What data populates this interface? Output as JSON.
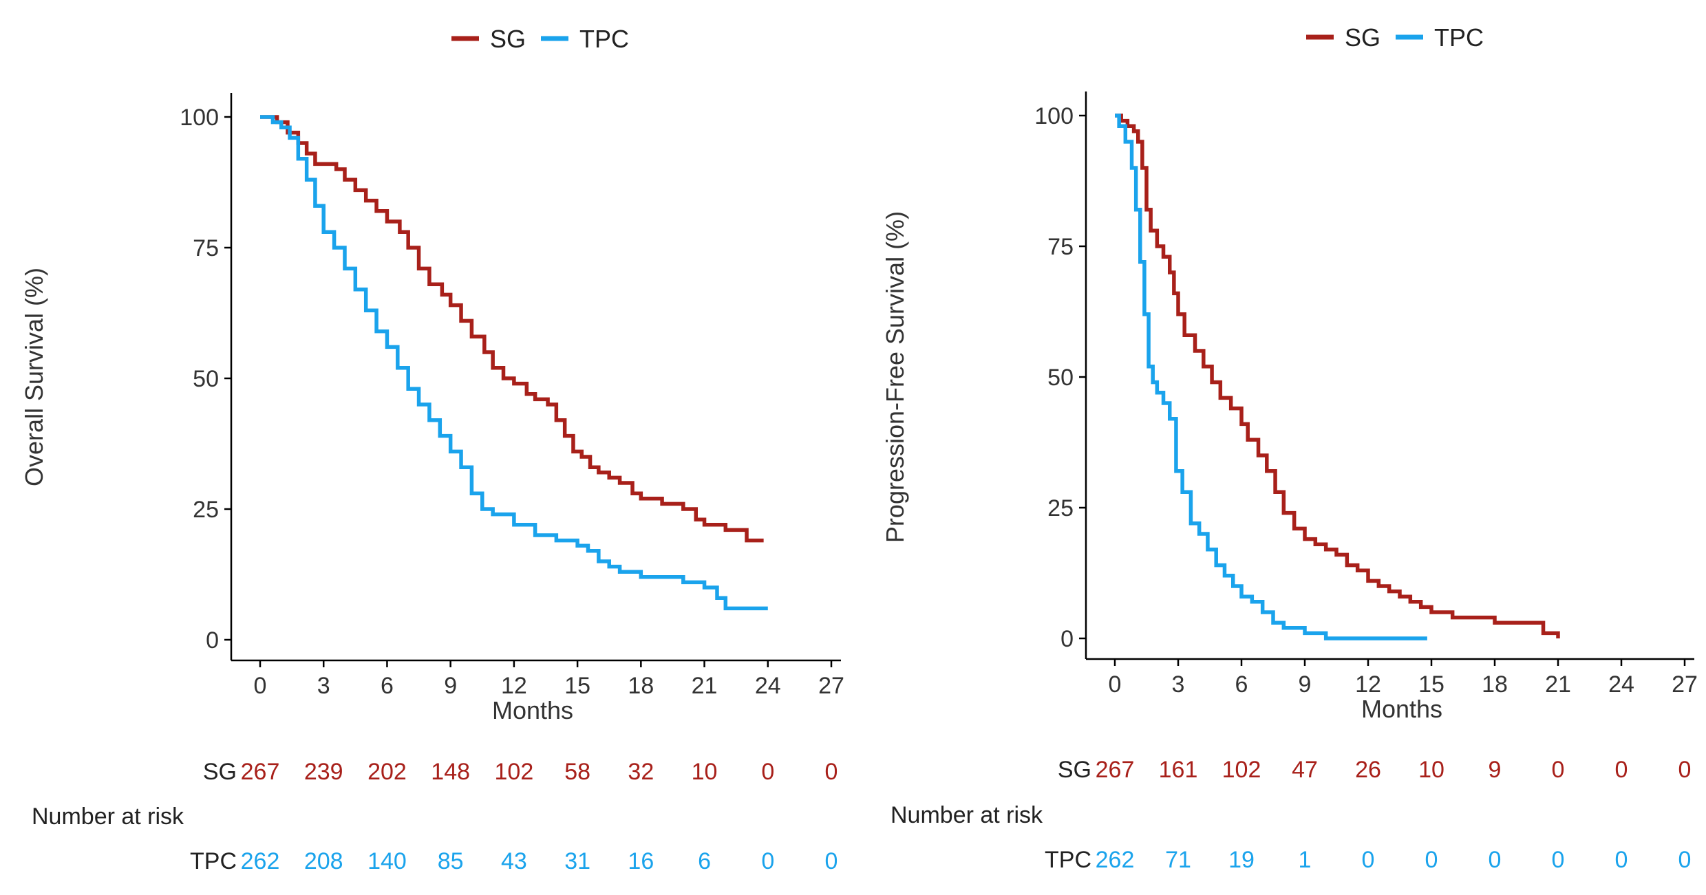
{
  "colors": {
    "SG": "#a8201a",
    "TPC": "#1aa3ec"
  },
  "chart_data": [
    {
      "type": "line",
      "subtype": "kaplan-meier",
      "title": "",
      "xlabel": "Months",
      "ylabel": "Overall Survival (%)",
      "xlim": [
        0,
        27
      ],
      "ylim": [
        0,
        100
      ],
      "xticks": [
        0,
        3,
        6,
        9,
        12,
        15,
        18,
        21,
        24,
        27
      ],
      "yticks": [
        0,
        25,
        50,
        75,
        100
      ],
      "legend": {
        "position": "top",
        "entries": [
          "SG",
          "TPC"
        ]
      },
      "series": [
        {
          "name": "SG",
          "x": [
            0,
            0.8,
            1.3,
            1.8,
            2.2,
            2.6,
            3.0,
            3.6,
            4.0,
            4.5,
            5.0,
            5.5,
            6.0,
            6.6,
            7.0,
            7.5,
            8.0,
            8.6,
            9.0,
            9.5,
            10.0,
            10.6,
            11.0,
            11.5,
            12.0,
            12.6,
            13.0,
            13.6,
            14.0,
            14.4,
            14.8,
            15.2,
            15.6,
            16.0,
            16.5,
            17.0,
            17.6,
            18.0,
            19.0,
            20.0,
            20.6,
            21.0,
            22.0,
            22.5,
            23.0,
            23.8
          ],
          "y": [
            100,
            99,
            97,
            95,
            93,
            91,
            91,
            90,
            88,
            86,
            84,
            82,
            80,
            78,
            75,
            71,
            68,
            66,
            64,
            61,
            58,
            55,
            52,
            50,
            49,
            47,
            46,
            45,
            42,
            39,
            36,
            35,
            33,
            32,
            31,
            30,
            28,
            27,
            26,
            25,
            23,
            22,
            21,
            21,
            19,
            19
          ]
        },
        {
          "name": "TPC",
          "x": [
            0,
            0.6,
            1.0,
            1.4,
            1.8,
            2.2,
            2.6,
            3.0,
            3.5,
            4.0,
            4.5,
            5.0,
            5.5,
            6.0,
            6.5,
            7.0,
            7.5,
            8.0,
            8.5,
            9.0,
            9.5,
            10.0,
            10.5,
            11.0,
            12.0,
            13.0,
            14.0,
            15.0,
            15.5,
            16.0,
            16.5,
            17.0,
            18.0,
            19.0,
            20.0,
            21.0,
            21.6,
            22.0,
            23.0,
            24.0
          ],
          "y": [
            100,
            99,
            98,
            96,
            92,
            88,
            83,
            78,
            75,
            71,
            67,
            63,
            59,
            56,
            52,
            48,
            45,
            42,
            39,
            36,
            33,
            28,
            25,
            24,
            22,
            20,
            19,
            18,
            17,
            15,
            14,
            13,
            12,
            12,
            11,
            10,
            8,
            6,
            6,
            6
          ]
        }
      ],
      "risk_table": {
        "heading": "Number at risk",
        "times": [
          0,
          3,
          6,
          9,
          12,
          15,
          18,
          21,
          24,
          27
        ],
        "rows": [
          {
            "label": "SG",
            "values": [
              "267",
              "239",
              "202",
              "148",
              "102",
              "58",
              "32",
              "10",
              "0",
              "0"
            ]
          },
          {
            "label": "TPC",
            "values": [
              "262",
              "208",
              "140",
              "85",
              "43",
              "31",
              "16",
              "6",
              "0",
              "0"
            ]
          }
        ]
      }
    },
    {
      "type": "line",
      "subtype": "kaplan-meier",
      "title": "",
      "xlabel": "Months",
      "ylabel": "Progression-Free Survival (%)",
      "xlim": [
        0,
        27
      ],
      "ylim": [
        0,
        100
      ],
      "xticks": [
        0,
        3,
        6,
        9,
        12,
        15,
        18,
        21,
        24,
        27
      ],
      "yticks": [
        0,
        25,
        50,
        75,
        100
      ],
      "legend": {
        "position": "top",
        "entries": [
          "SG",
          "TPC"
        ]
      },
      "series": [
        {
          "name": "SG",
          "x": [
            0,
            0.3,
            0.6,
            0.9,
            1.1,
            1.3,
            1.5,
            1.7,
            2.0,
            2.3,
            2.6,
            2.8,
            3.0,
            3.3,
            3.8,
            4.2,
            4.6,
            5.0,
            5.5,
            6.0,
            6.3,
            6.8,
            7.2,
            7.6,
            8.0,
            8.5,
            9.0,
            9.5,
            10.0,
            10.5,
            11.0,
            11.5,
            12.0,
            12.5,
            13.0,
            13.5,
            14.0,
            14.5,
            15.0,
            16.0,
            18.0,
            20.0,
            20.3,
            21.0
          ],
          "y": [
            100,
            99,
            98,
            97,
            95,
            90,
            82,
            78,
            75,
            73,
            70,
            66,
            62,
            58,
            55,
            52,
            49,
            46,
            44,
            41,
            38,
            35,
            32,
            28,
            24,
            21,
            19,
            18,
            17,
            16,
            14,
            13,
            11,
            10,
            9,
            8,
            7,
            6,
            5,
            4,
            3,
            3,
            1,
            0
          ]
        },
        {
          "name": "TPC",
          "x": [
            0,
            0.2,
            0.5,
            0.8,
            1.0,
            1.2,
            1.4,
            1.6,
            1.8,
            2.0,
            2.3,
            2.6,
            2.9,
            3.2,
            3.6,
            4.0,
            4.4,
            4.8,
            5.2,
            5.6,
            6.0,
            6.5,
            7.0,
            7.5,
            8.0,
            8.5,
            9.0,
            9.5,
            10.0,
            11.0,
            13.0,
            14.8
          ],
          "y": [
            100,
            98,
            95,
            90,
            82,
            72,
            62,
            52,
            49,
            47,
            45,
            42,
            32,
            28,
            22,
            20,
            17,
            14,
            12,
            10,
            8,
            7,
            5,
            3,
            2,
            2,
            1,
            1,
            0,
            0,
            0,
            0
          ]
        }
      ],
      "risk_table": {
        "heading": "Number at risk",
        "times": [
          0,
          3,
          6,
          9,
          12,
          15,
          18,
          21,
          24,
          27
        ],
        "rows": [
          {
            "label": "SG",
            "values": [
              "267",
              "161",
              "102",
              "47",
              "26",
              "10",
              "9",
              "0",
              "0",
              "0"
            ]
          },
          {
            "label": "TPC",
            "values": [
              "262",
              "71",
              "19",
              "1",
              "0",
              "0",
              "0",
              "0",
              "0",
              "0"
            ]
          }
        ]
      }
    }
  ]
}
